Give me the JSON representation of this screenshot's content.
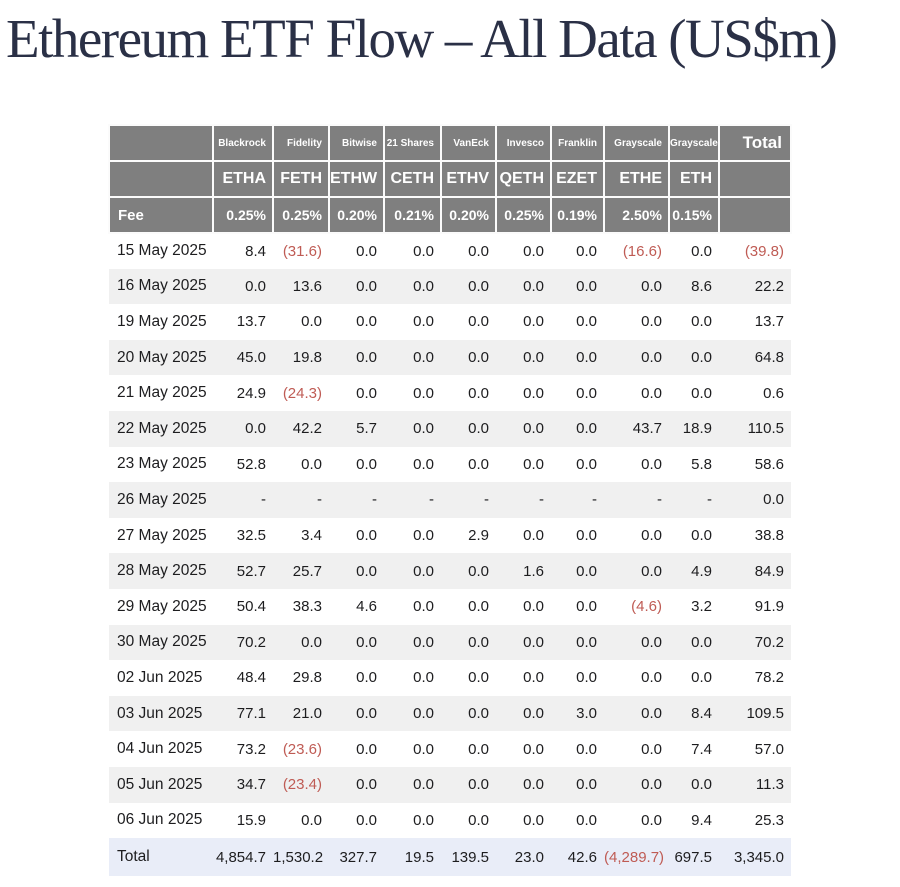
{
  "title": "Ethereum ETF Flow – All Data (US$m)",
  "colors": {
    "title_navy": "#2a3046",
    "header_gray": "#7f7f7f",
    "row_alt_bg": "#f0f0f0",
    "total_row_bg": "#e9edf8",
    "negative_red": "#bf5b54",
    "body_text": "#1d1d1f"
  },
  "chart_data": {
    "type": "table",
    "title": "Ethereum ETF Flow – All Data (US$m)",
    "units": "US$m",
    "negative_convention": "parentheses shown in red",
    "header": {
      "issuers": [
        "Blackrock",
        "Fidelity",
        "Bitwise",
        "21 Shares",
        "VanEck",
        "Invesco",
        "Franklin",
        "Grayscale",
        "Grayscale"
      ],
      "tickers": [
        "ETHA",
        "FETH",
        "ETHW",
        "CETH",
        "ETHV",
        "QETH",
        "EZET",
        "ETHE",
        "ETH"
      ],
      "fee_row_label": "Fee",
      "fees": [
        "0.25%",
        "0.25%",
        "0.20%",
        "0.21%",
        "0.20%",
        "0.25%",
        "0.19%",
        "2.50%",
        "0.15%"
      ],
      "total_label": "Total"
    },
    "rows": [
      {
        "date": "15 May 2025",
        "values": [
          "8.4",
          "(31.6)",
          "0.0",
          "0.0",
          "0.0",
          "0.0",
          "0.0",
          "(16.6)",
          "0.0"
        ],
        "total": "(39.8)"
      },
      {
        "date": "16 May 2025",
        "values": [
          "0.0",
          "13.6",
          "0.0",
          "0.0",
          "0.0",
          "0.0",
          "0.0",
          "0.0",
          "8.6"
        ],
        "total": "22.2"
      },
      {
        "date": "19 May 2025",
        "values": [
          "13.7",
          "0.0",
          "0.0",
          "0.0",
          "0.0",
          "0.0",
          "0.0",
          "0.0",
          "0.0"
        ],
        "total": "13.7"
      },
      {
        "date": "20 May 2025",
        "values": [
          "45.0",
          "19.8",
          "0.0",
          "0.0",
          "0.0",
          "0.0",
          "0.0",
          "0.0",
          "0.0"
        ],
        "total": "64.8"
      },
      {
        "date": "21 May 2025",
        "values": [
          "24.9",
          "(24.3)",
          "0.0",
          "0.0",
          "0.0",
          "0.0",
          "0.0",
          "0.0",
          "0.0"
        ],
        "total": "0.6"
      },
      {
        "date": "22 May 2025",
        "values": [
          "0.0",
          "42.2",
          "5.7",
          "0.0",
          "0.0",
          "0.0",
          "0.0",
          "43.7",
          "18.9"
        ],
        "total": "110.5"
      },
      {
        "date": "23 May 2025",
        "values": [
          "52.8",
          "0.0",
          "0.0",
          "0.0",
          "0.0",
          "0.0",
          "0.0",
          "0.0",
          "5.8"
        ],
        "total": "58.6"
      },
      {
        "date": "26 May 2025",
        "values": [
          "-",
          "-",
          "-",
          "-",
          "-",
          "-",
          "-",
          "-",
          "-"
        ],
        "total": "0.0"
      },
      {
        "date": "27 May 2025",
        "values": [
          "32.5",
          "3.4",
          "0.0",
          "0.0",
          "2.9",
          "0.0",
          "0.0",
          "0.0",
          "0.0"
        ],
        "total": "38.8"
      },
      {
        "date": "28 May 2025",
        "values": [
          "52.7",
          "25.7",
          "0.0",
          "0.0",
          "0.0",
          "1.6",
          "0.0",
          "0.0",
          "4.9"
        ],
        "total": "84.9"
      },
      {
        "date": "29 May 2025",
        "values": [
          "50.4",
          "38.3",
          "4.6",
          "0.0",
          "0.0",
          "0.0",
          "0.0",
          "(4.6)",
          "3.2"
        ],
        "total": "91.9"
      },
      {
        "date": "30 May 2025",
        "values": [
          "70.2",
          "0.0",
          "0.0",
          "0.0",
          "0.0",
          "0.0",
          "0.0",
          "0.0",
          "0.0"
        ],
        "total": "70.2"
      },
      {
        "date": "02 Jun 2025",
        "values": [
          "48.4",
          "29.8",
          "0.0",
          "0.0",
          "0.0",
          "0.0",
          "0.0",
          "0.0",
          "0.0"
        ],
        "total": "78.2"
      },
      {
        "date": "03 Jun 2025",
        "values": [
          "77.1",
          "21.0",
          "0.0",
          "0.0",
          "0.0",
          "0.0",
          "3.0",
          "0.0",
          "8.4"
        ],
        "total": "109.5"
      },
      {
        "date": "04 Jun 2025",
        "values": [
          "73.2",
          "(23.6)",
          "0.0",
          "0.0",
          "0.0",
          "0.0",
          "0.0",
          "0.0",
          "7.4"
        ],
        "total": "57.0"
      },
      {
        "date": "05 Jun 2025",
        "values": [
          "34.7",
          "(23.4)",
          "0.0",
          "0.0",
          "0.0",
          "0.0",
          "0.0",
          "0.0",
          "0.0"
        ],
        "total": "11.3"
      },
      {
        "date": "06 Jun 2025",
        "values": [
          "15.9",
          "0.0",
          "0.0",
          "0.0",
          "0.0",
          "0.0",
          "0.0",
          "0.0",
          "9.4"
        ],
        "total": "25.3"
      }
    ],
    "totals": {
      "label": "Total",
      "values": [
        "4,854.7",
        "1,530.2",
        "327.7",
        "19.5",
        "139.5",
        "23.0",
        "42.6",
        "(4,289.7)",
        "697.5"
      ],
      "total": "3,345.0"
    }
  }
}
